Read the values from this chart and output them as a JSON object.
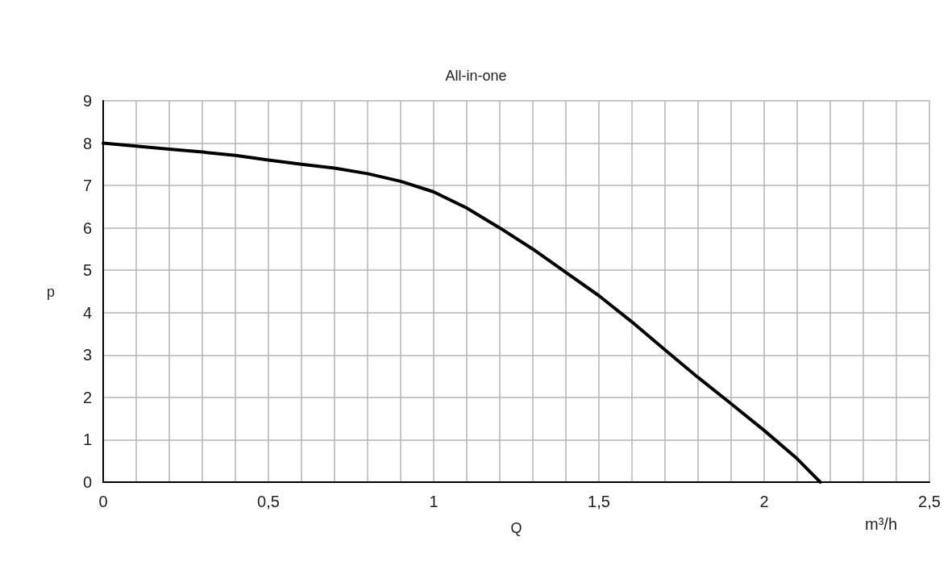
{
  "chart_data": {
    "type": "line",
    "title": "All-in-one",
    "xlabel": "Q",
    "ylabel": "p",
    "annotations": [
      "m³/h"
    ],
    "x": [
      0,
      0.1,
      0.2,
      0.3,
      0.4,
      0.5,
      0.6,
      0.7,
      0.8,
      0.9,
      1,
      1.1,
      1.2,
      1.3,
      1.4,
      1.5,
      1.6,
      1.7,
      1.8,
      1.9,
      2,
      2.1,
      2.17
    ],
    "series": [
      {
        "color": "#000000",
        "values": [
          8,
          7.93,
          7.86,
          7.79,
          7.71,
          7.6,
          7.5,
          7.41,
          7.28,
          7.1,
          6.85,
          6.47,
          6.0,
          5.5,
          4.95,
          4.4,
          3.78,
          3.12,
          2.47,
          1.85,
          1.22,
          0.55,
          0
        ]
      }
    ],
    "xlim": [
      0,
      2.5
    ],
    "ylim": [
      0,
      9
    ],
    "xticks": [
      0,
      {
        "value": 0.1,
        "label": null
      },
      {
        "value": 0.2,
        "label": null
      },
      {
        "value": 0.3,
        "label": null
      },
      {
        "value": 0.4,
        "label": null
      },
      {
        "value": 0.5,
        "label": "0,5"
      },
      {
        "value": 0.6,
        "label": null
      },
      {
        "value": 0.7,
        "label": null
      },
      {
        "value": 0.8,
        "label": null
      },
      {
        "value": 0.9,
        "label": null
      },
      1,
      {
        "value": 1.1,
        "label": null
      },
      {
        "value": 1.2,
        "label": null
      },
      {
        "value": 1.3,
        "label": null
      },
      {
        "value": 1.4,
        "label": null
      },
      {
        "value": 1.5,
        "label": "1,5"
      },
      {
        "value": 1.6,
        "label": null
      },
      {
        "value": 1.7,
        "label": null
      },
      {
        "value": 1.8,
        "label": null
      },
      {
        "value": 1.9,
        "label": null
      },
      2,
      {
        "value": 2.1,
        "label": null
      },
      {
        "value": 2.2,
        "label": null
      },
      {
        "value": 2.3,
        "label": null
      },
      {
        "value": 2.4,
        "label": null
      },
      {
        "value": 2.5,
        "label": "2,5"
      }
    ],
    "yticks": [
      0,
      1,
      2,
      3,
      4,
      5,
      6,
      7,
      8,
      9
    ],
    "grid": true,
    "marker": "none",
    "line_style": "solid"
  }
}
